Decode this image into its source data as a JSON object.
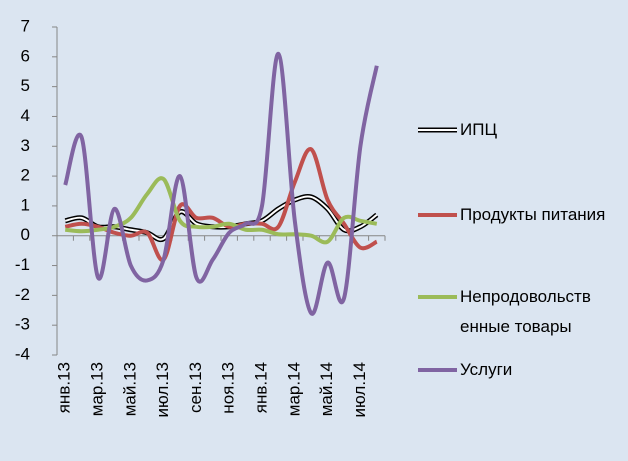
{
  "chart_data": {
    "type": "line",
    "categories": [
      "янв.13",
      null,
      "мар.13",
      null,
      "май.13",
      null,
      "июл.13",
      null,
      "сен.13",
      null,
      "ноя.13",
      null,
      "янв.14",
      null,
      "мар.14",
      null,
      "май.14",
      null,
      "июл.14",
      null
    ],
    "series": [
      {
        "name": "ИПЦ",
        "color": "#000000",
        "values": [
          0.5,
          0.6,
          0.3,
          0.3,
          0.2,
          0.1,
          -0.1,
          0.8,
          0.4,
          0.3,
          0.3,
          0.4,
          0.5,
          0.9,
          1.2,
          1.3,
          0.9,
          0.2,
          0.3,
          0.7
        ]
      },
      {
        "name": "Продукты питания",
        "color": "#c0504d",
        "values": [
          0.3,
          0.4,
          0.3,
          0.1,
          0.0,
          0.1,
          -0.8,
          1.0,
          0.6,
          0.6,
          0.3,
          0.4,
          0.4,
          0.3,
          1.8,
          2.9,
          1.2,
          0.4,
          -0.4,
          -0.2
        ]
      },
      {
        "name": "Непродовольственные товары",
        "color": "#9bbb59",
        "values": [
          0.2,
          0.15,
          0.2,
          0.3,
          0.6,
          1.4,
          1.9,
          0.5,
          0.3,
          0.3,
          0.4,
          0.2,
          0.2,
          0.05,
          0.05,
          0.0,
          -0.2,
          0.6,
          0.5,
          0.4
        ]
      },
      {
        "name": "Услуги",
        "color": "#8064a2",
        "values": [
          1.7,
          3.3,
          -1.4,
          0.9,
          -1.0,
          -1.5,
          -0.8,
          2.0,
          -1.4,
          -0.8,
          0.1,
          0.4,
          1.0,
          6.1,
          0.5,
          -2.6,
          -0.9,
          -2.1,
          3.0,
          5.7
        ]
      }
    ],
    "ylim": [
      -4,
      7
    ],
    "yticks": [
      -4,
      -3,
      -2,
      -1,
      0,
      1,
      2,
      3,
      4,
      5,
      6,
      7
    ],
    "legend": "right"
  }
}
